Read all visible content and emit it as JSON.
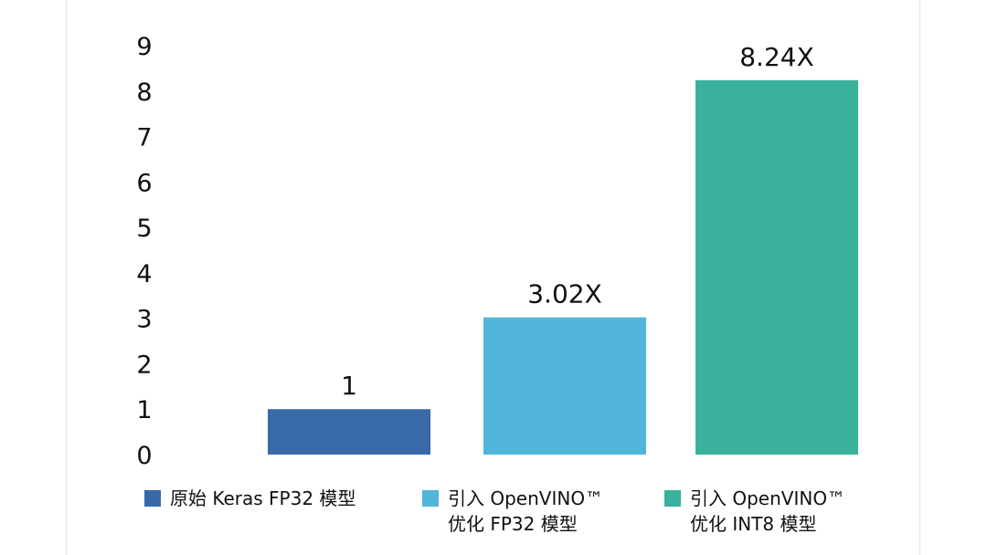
{
  "chart_data": {
    "type": "bar",
    "title": "",
    "xlabel": "",
    "ylabel": "",
    "ylim": [
      0,
      9
    ],
    "yticks": [
      0,
      1,
      2,
      3,
      4,
      5,
      6,
      7,
      8,
      9
    ],
    "grid": false,
    "legend_placement": "bottom",
    "categories": [
      "原始 Keras FP32 模型",
      "引入 OpenVINO™ 优化 FP32 模型",
      "引入 OpenVINO™ 优化 INT8 模型"
    ],
    "values": [
      1,
      3.02,
      8.24
    ],
    "data_labels": [
      "1",
      "3.02X",
      "8.24X"
    ],
    "colors": [
      "#3869a8",
      "#52b6db",
      "#3ab19b"
    ],
    "legend": [
      {
        "line1": "原始 Keras FP32 模型",
        "line2": "",
        "color": "#3869a8"
      },
      {
        "line1": "引入 OpenVINO™",
        "line2": "优化 FP32 模型",
        "color": "#52b6db"
      },
      {
        "line1": "引入 OpenVINO™",
        "line2": "优化 INT8 模型",
        "color": "#3ab19b"
      }
    ]
  }
}
